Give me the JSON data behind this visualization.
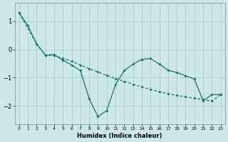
{
  "xlabel": "Humidex (Indice chaleur)",
  "bg_color": "#cce8e4",
  "grid_color": "#aaccca",
  "line_color": "#1e7068",
  "xlim": [
    -0.5,
    23.5
  ],
  "ylim": [
    -2.65,
    1.65
  ],
  "xticks": [
    0,
    1,
    2,
    3,
    4,
    5,
    6,
    7,
    8,
    9,
    10,
    11,
    12,
    13,
    14,
    15,
    16,
    17,
    18,
    19,
    20,
    21,
    22,
    23
  ],
  "yticks": [
    -2,
    -1,
    0,
    1
  ],
  "curve1_x": [
    0,
    1,
    2,
    3,
    4,
    5,
    6,
    7,
    8,
    9,
    10,
    11,
    12,
    13,
    14,
    15,
    16,
    17,
    18,
    19,
    20,
    21,
    22,
    23
  ],
  "curve1_y": [
    1.3,
    0.85,
    0.2,
    -0.2,
    -0.18,
    -0.38,
    -0.55,
    -0.75,
    -1.75,
    -2.38,
    -2.17,
    -1.25,
    -0.75,
    -0.52,
    -0.35,
    -0.32,
    -0.52,
    -0.73,
    -0.82,
    -0.93,
    -1.05,
    -1.82,
    -1.6,
    -1.6
  ],
  "curve2_x": [
    0,
    2,
    3,
    4,
    5,
    6,
    7,
    8,
    9,
    10,
    11,
    12,
    13,
    14,
    15,
    16,
    17,
    18,
    19,
    20,
    21,
    22,
    23
  ],
  "curve2_y": [
    1.3,
    0.2,
    -0.2,
    -0.22,
    -0.32,
    -0.42,
    -0.55,
    -0.68,
    -0.8,
    -0.92,
    -1.03,
    -1.13,
    -1.23,
    -1.33,
    -1.42,
    -1.5,
    -1.57,
    -1.63,
    -1.68,
    -1.73,
    -1.78,
    -1.83,
    -1.6
  ]
}
